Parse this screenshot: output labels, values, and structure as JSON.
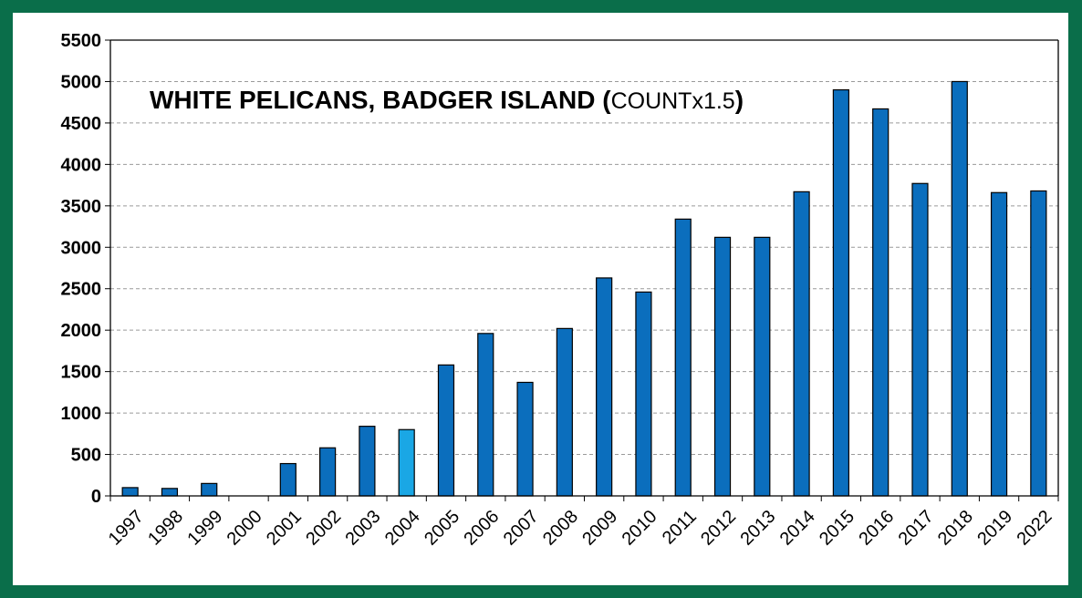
{
  "chart_data": {
    "type": "bar",
    "title_main": "WHITE PELICANS, BADGER ISLAND ",
    "title_open": "(",
    "title_sub": "COUNTx1.5",
    "title_close": ")",
    "xlabel": "",
    "ylabel": "",
    "ylim": [
      0,
      5500
    ],
    "ytick_step": 500,
    "grid": true,
    "categories": [
      "1997",
      "1998",
      "1999",
      "2000",
      "2001",
      "2002",
      "2003",
      "2004",
      "2005",
      "2006",
      "2007",
      "2008",
      "2009",
      "2010",
      "2011",
      "2012",
      "2013",
      "2014",
      "2015",
      "2016",
      "2017",
      "2018",
      "2019",
      "2022"
    ],
    "values": [
      100,
      90,
      150,
      0,
      390,
      580,
      840,
      800,
      1580,
      1960,
      1370,
      2020,
      2630,
      2460,
      3340,
      3120,
      3120,
      3670,
      4900,
      4670,
      3770,
      5000,
      3660,
      3680
    ],
    "highlight_index": 7,
    "colors": {
      "bar": "#0b6ebd",
      "highlight": "#1aa7e5",
      "frame": "#0a6e4a",
      "grid": "#9a9a9a"
    }
  }
}
